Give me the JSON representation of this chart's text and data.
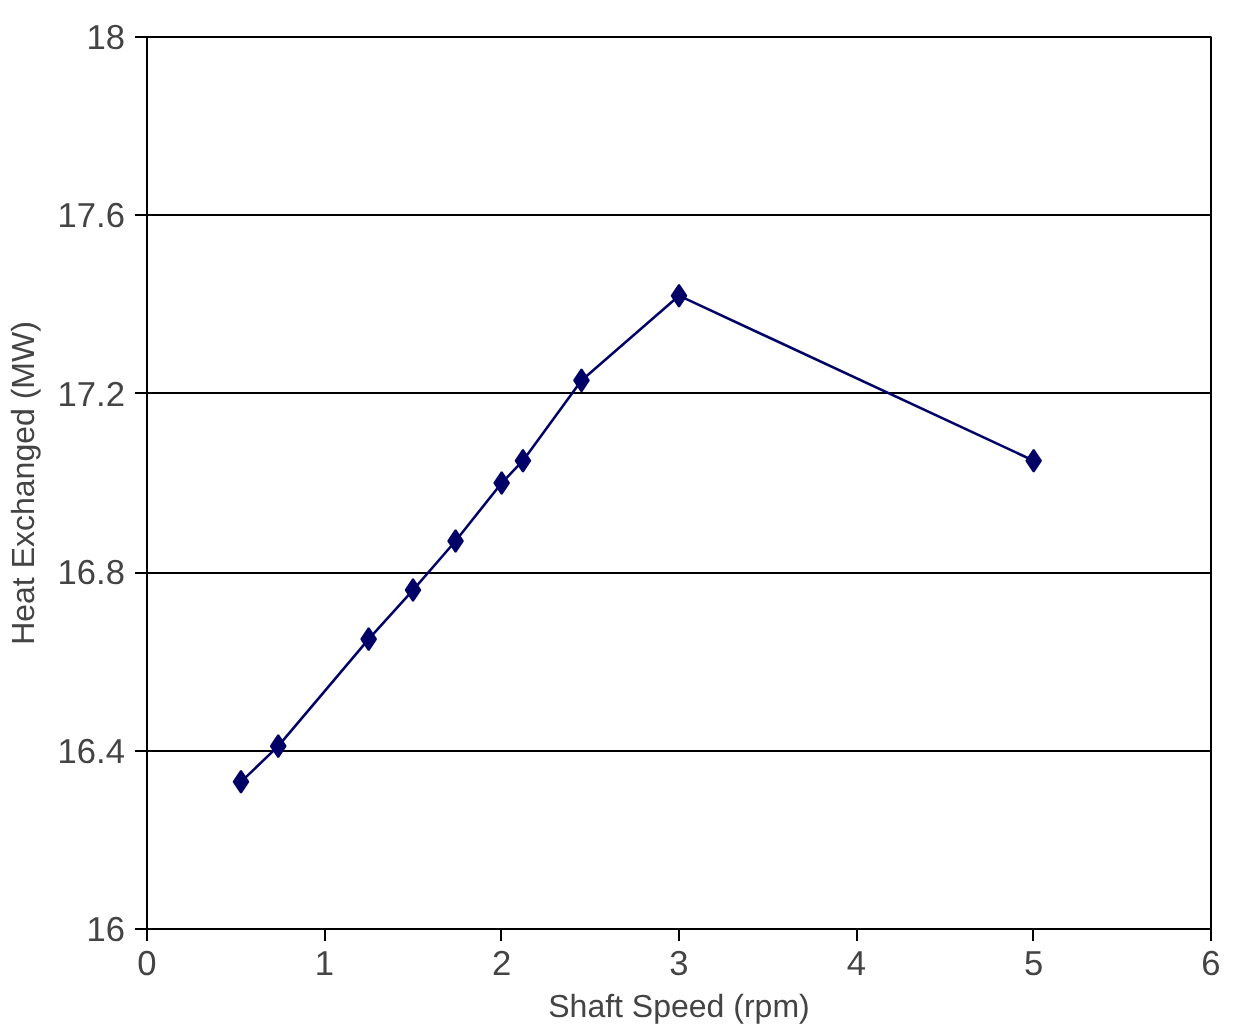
{
  "chart_data": {
    "type": "line",
    "xlabel": "Shaft Speed (rpm)",
    "ylabel": "Heat Exchanged (MW)",
    "x": [
      0.53,
      0.74,
      1.25,
      1.5,
      1.74,
      2.0,
      2.12,
      2.45,
      3.0,
      5.0
    ],
    "series": [
      {
        "color": "#000066",
        "values": [
          16.33,
          16.41,
          16.65,
          16.76,
          16.87,
          17.0,
          17.05,
          17.23,
          17.42,
          17.05
        ]
      }
    ],
    "xlim": [
      0,
      6
    ],
    "xticks": [
      0,
      1,
      2,
      3,
      4,
      5,
      6
    ],
    "ylim": [
      16,
      18
    ],
    "yticks": [
      16,
      16.4,
      16.8,
      17.2,
      17.6,
      18
    ],
    "grid": "y",
    "marker": "diamond",
    "line_style": "solid"
  }
}
